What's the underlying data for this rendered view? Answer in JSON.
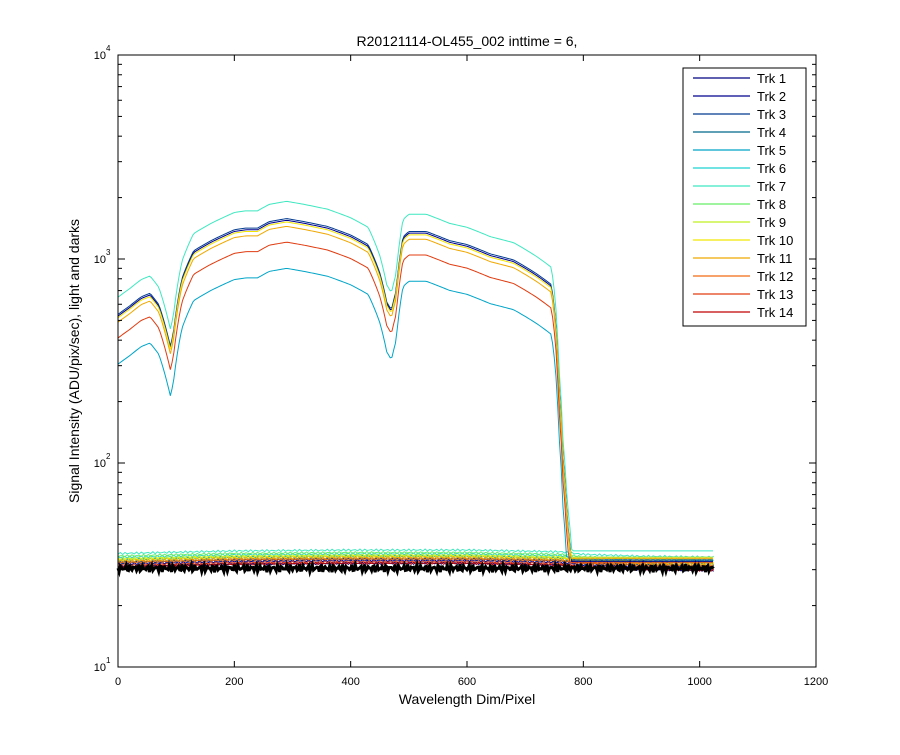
{
  "chart_data": {
    "type": "line",
    "title": "R20121114-OL455_002 inttime = 6,",
    "xlabel": "Wavelength Dim/Pixel",
    "ylabel": "Signal Intensity (ADU/pix/sec), light and darks",
    "xlim": [
      0,
      1200
    ],
    "ylim": [
      10,
      10000
    ],
    "yscale": "log",
    "grid": false,
    "legend_position": "top-right",
    "x_ticks": [
      "0",
      "200",
      "400",
      "600",
      "800",
      "1000",
      "1200"
    ],
    "y_ticks": [
      {
        "base": "10",
        "exp": "1"
      },
      {
        "base": "10",
        "exp": "2"
      },
      {
        "base": "10",
        "exp": "3"
      },
      {
        "base": "10",
        "exp": "4"
      }
    ],
    "light_shape": {
      "x": [
        0,
        20,
        40,
        55,
        70,
        85,
        90,
        95,
        110,
        130,
        160,
        200,
        220,
        240,
        260,
        290,
        320,
        360,
        400,
        430,
        450,
        462,
        470,
        478,
        490,
        500,
        530,
        570,
        600,
        640,
        680,
        720,
        745,
        752,
        758,
        765,
        772,
        780,
        790,
        805,
        820,
        860,
        880,
        900,
        1024
      ],
      "y": [
        1.0,
        1.1,
        1.22,
        1.27,
        1.12,
        0.8,
        0.7,
        0.8,
        1.5,
        2.05,
        2.3,
        2.6,
        2.65,
        2.65,
        2.85,
        2.95,
        2.85,
        2.7,
        2.45,
        2.2,
        1.6,
        1.15,
        1.05,
        1.3,
        2.4,
        2.55,
        2.55,
        2.3,
        2.2,
        1.98,
        1.85,
        1.58,
        1.4,
        0.95,
        0.45,
        0.2,
        0.1,
        0.058,
        0.046,
        0.039,
        0.036,
        0.035,
        0.034,
        0.034,
        0.034
      ]
    },
    "dark_shape": {
      "x": [
        0,
        200,
        400,
        600,
        760,
        800,
        900,
        1024
      ],
      "y": [
        1.0,
        1.03,
        1.04,
        1.04,
        1.02,
        0.99,
        0.97,
        0.96
      ]
    },
    "series": [
      {
        "name": "Trk 1",
        "color": "#000080",
        "light_scale": 0,
        "dark_level": 31
      },
      {
        "name": "Trk 2",
        "color": "#00008f",
        "light_scale": 525,
        "dark_level": 32
      },
      {
        "name": "Trk 3",
        "color": "#003a90",
        "light_scale": 535,
        "dark_level": 32.5
      },
      {
        "name": "Trk 4",
        "color": "#00688b",
        "light_scale": 0,
        "dark_level": 33
      },
      {
        "name": "Trk 5",
        "color": "#00a5c8",
        "light_scale": 305,
        "dark_level": 33.5
      },
      {
        "name": "Trk 6",
        "color": "#1ed2d2",
        "light_scale": 0,
        "dark_level": 34.5
      },
      {
        "name": "Trk 7",
        "color": "#3ee8c0",
        "light_scale": 650,
        "dark_level": 36
      },
      {
        "name": "Trk 8",
        "color": "#66ee66",
        "light_scale": 0,
        "dark_level": 35
      },
      {
        "name": "Trk 9",
        "color": "#c0f020",
        "light_scale": 0,
        "dark_level": 34
      },
      {
        "name": "Trk 10",
        "color": "#f2e600",
        "light_scale": 515,
        "dark_level": 33.5
      },
      {
        "name": "Trk 11",
        "color": "#f0a800",
        "light_scale": 490,
        "dark_level": 33
      },
      {
        "name": "Trk 12",
        "color": "#f06a10",
        "light_scale": 0,
        "dark_level": 32.5
      },
      {
        "name": "Trk 13",
        "color": "#e03c10",
        "light_scale": 410,
        "dark_level": 31.5
      },
      {
        "name": "Trk 14",
        "color": "#c00000",
        "light_scale": 0,
        "dark_level": 31
      }
    ]
  }
}
